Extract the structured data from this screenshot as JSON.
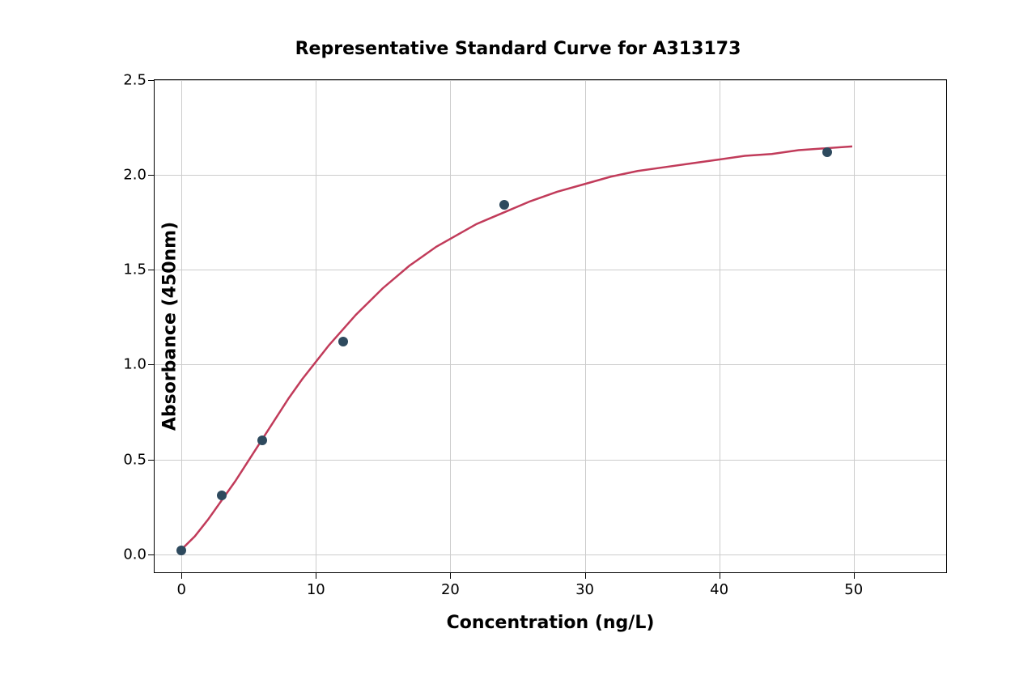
{
  "chart": {
    "type": "scatter-with-curve",
    "title": "Representative Standard Curve for A313173",
    "title_fontsize": 22,
    "title_fontweight": "bold",
    "xlabel": "Concentration (ng/L)",
    "ylabel": "Absorbance (450nm)",
    "label_fontsize": 22,
    "label_fontweight": "bold",
    "tick_fontsize": 18,
    "background_color": "#ffffff",
    "grid_color": "#cccccc",
    "border_color": "#000000",
    "xlim": [
      -2,
      57
    ],
    "ylim": [
      -0.1,
      2.5
    ],
    "xticks": [
      0,
      10,
      20,
      30,
      40,
      50
    ],
    "yticks": [
      0.0,
      0.5,
      1.0,
      1.5,
      2.0,
      2.5
    ],
    "ytick_labels": [
      "0.0",
      "0.5",
      "1.0",
      "1.5",
      "2.0",
      "2.5"
    ],
    "data_points": {
      "x": [
        0,
        3,
        6,
        12,
        24,
        48
      ],
      "y": [
        0.02,
        0.31,
        0.6,
        1.12,
        1.84,
        2.12
      ],
      "color": "#2e4a5e",
      "size": 12
    },
    "curve": {
      "color": "#c13b5a",
      "width": 2.5,
      "points": [
        [
          0,
          0.02
        ],
        [
          1,
          0.09
        ],
        [
          2,
          0.18
        ],
        [
          3,
          0.28
        ],
        [
          4,
          0.38
        ],
        [
          5,
          0.49
        ],
        [
          6,
          0.6
        ],
        [
          7,
          0.71
        ],
        [
          8,
          0.82
        ],
        [
          9,
          0.92
        ],
        [
          10,
          1.01
        ],
        [
          11,
          1.1
        ],
        [
          12,
          1.18
        ],
        [
          13,
          1.26
        ],
        [
          14,
          1.33
        ],
        [
          15,
          1.4
        ],
        [
          16,
          1.46
        ],
        [
          17,
          1.52
        ],
        [
          18,
          1.57
        ],
        [
          19,
          1.62
        ],
        [
          20,
          1.66
        ],
        [
          21,
          1.7
        ],
        [
          22,
          1.74
        ],
        [
          23,
          1.77
        ],
        [
          24,
          1.8
        ],
        [
          26,
          1.86
        ],
        [
          28,
          1.91
        ],
        [
          30,
          1.95
        ],
        [
          32,
          1.99
        ],
        [
          34,
          2.02
        ],
        [
          36,
          2.04
        ],
        [
          38,
          2.06
        ],
        [
          40,
          2.08
        ],
        [
          42,
          2.1
        ],
        [
          44,
          2.11
        ],
        [
          46,
          2.13
        ],
        [
          48,
          2.14
        ],
        [
          50,
          2.15
        ]
      ]
    }
  }
}
